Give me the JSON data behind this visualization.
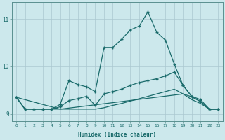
{
  "xlabel": "Humidex (Indice chaleur)",
  "background_color": "#cce8ec",
  "grid_color": "#aac8d0",
  "line_color": "#1a6b6b",
  "xlim": [
    -0.5,
    23.5
  ],
  "ylim": [
    8.85,
    11.35
  ],
  "yticks": [
    9,
    10,
    11
  ],
  "xticks": [
    0,
    1,
    2,
    3,
    4,
    5,
    6,
    7,
    8,
    9,
    10,
    11,
    12,
    13,
    14,
    15,
    16,
    17,
    18,
    19,
    20,
    21,
    22,
    23
  ],
  "curve1_x": [
    0,
    1,
    2,
    3,
    4,
    5,
    6,
    7,
    8,
    9,
    10,
    11,
    12,
    13,
    14,
    15,
    16,
    17,
    18,
    19,
    20,
    21,
    22,
    23
  ],
  "curve1_y": [
    9.35,
    9.1,
    9.1,
    9.1,
    9.1,
    9.2,
    9.7,
    9.62,
    9.57,
    9.47,
    10.4,
    10.4,
    10.57,
    10.77,
    10.85,
    11.15,
    10.72,
    10.55,
    10.05,
    9.6,
    9.37,
    9.3,
    9.1,
    9.1
  ],
  "curve2_x": [
    0,
    1,
    2,
    3,
    4,
    5,
    6,
    7,
    8,
    9,
    10,
    11,
    12,
    13,
    14,
    15,
    16,
    17,
    18,
    19,
    20,
    21,
    22,
    23
  ],
  "curve2_y": [
    9.35,
    9.1,
    9.1,
    9.1,
    9.1,
    9.15,
    9.28,
    9.32,
    9.37,
    9.18,
    9.42,
    9.47,
    9.52,
    9.6,
    9.66,
    9.7,
    9.74,
    9.8,
    9.88,
    9.6,
    9.36,
    9.26,
    9.1,
    9.1
  ],
  "curve3_x": [
    0,
    1,
    2,
    3,
    4,
    5,
    6,
    7,
    8,
    9,
    10,
    11,
    12,
    13,
    14,
    15,
    16,
    17,
    18,
    19,
    20,
    21,
    22,
    23
  ],
  "curve3_y": [
    9.35,
    9.1,
    9.1,
    9.1,
    9.1,
    9.1,
    9.1,
    9.1,
    9.1,
    9.1,
    9.13,
    9.18,
    9.22,
    9.27,
    9.32,
    9.37,
    9.42,
    9.47,
    9.52,
    9.42,
    9.3,
    9.22,
    9.1,
    9.1
  ],
  "curve4_x": [
    0,
    5,
    19,
    20,
    21,
    22,
    23
  ],
  "curve4_y": [
    9.35,
    9.1,
    9.42,
    9.36,
    9.26,
    9.1,
    9.1
  ]
}
